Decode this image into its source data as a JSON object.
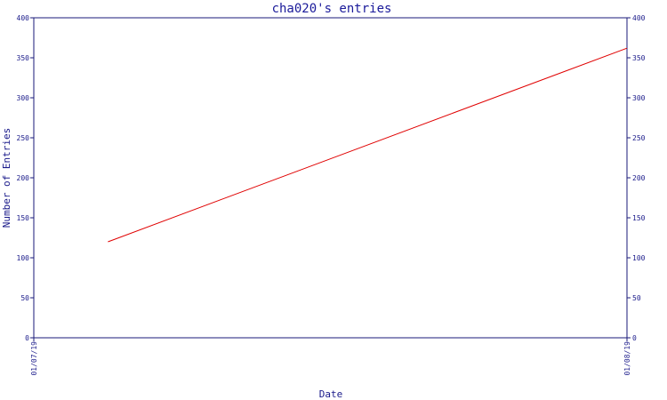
{
  "chart_data": {
    "type": "line",
    "title": "cha020's entries",
    "xlabel": "Date",
    "ylabel": "Number of Entries",
    "ylim": [
      0,
      400
    ],
    "yticks": [
      0,
      50,
      100,
      150,
      200,
      250,
      300,
      350,
      400
    ],
    "x_tick_labels": [
      "01/07/19",
      "01/08/19"
    ],
    "x_range": [
      "2019-01-07",
      "2019-01-08"
    ],
    "series": [
      {
        "color": "#e00000",
        "points": [
          {
            "x": "2019-01-07T03:00",
            "y": 120
          },
          {
            "x": "2019-01-08",
            "y": 362
          }
        ]
      }
    ],
    "right_axis_mirror": true,
    "grid": false,
    "colors": {
      "axis": "#1a1a7a",
      "text": "#1a1a8a",
      "line": "#e00000"
    }
  }
}
